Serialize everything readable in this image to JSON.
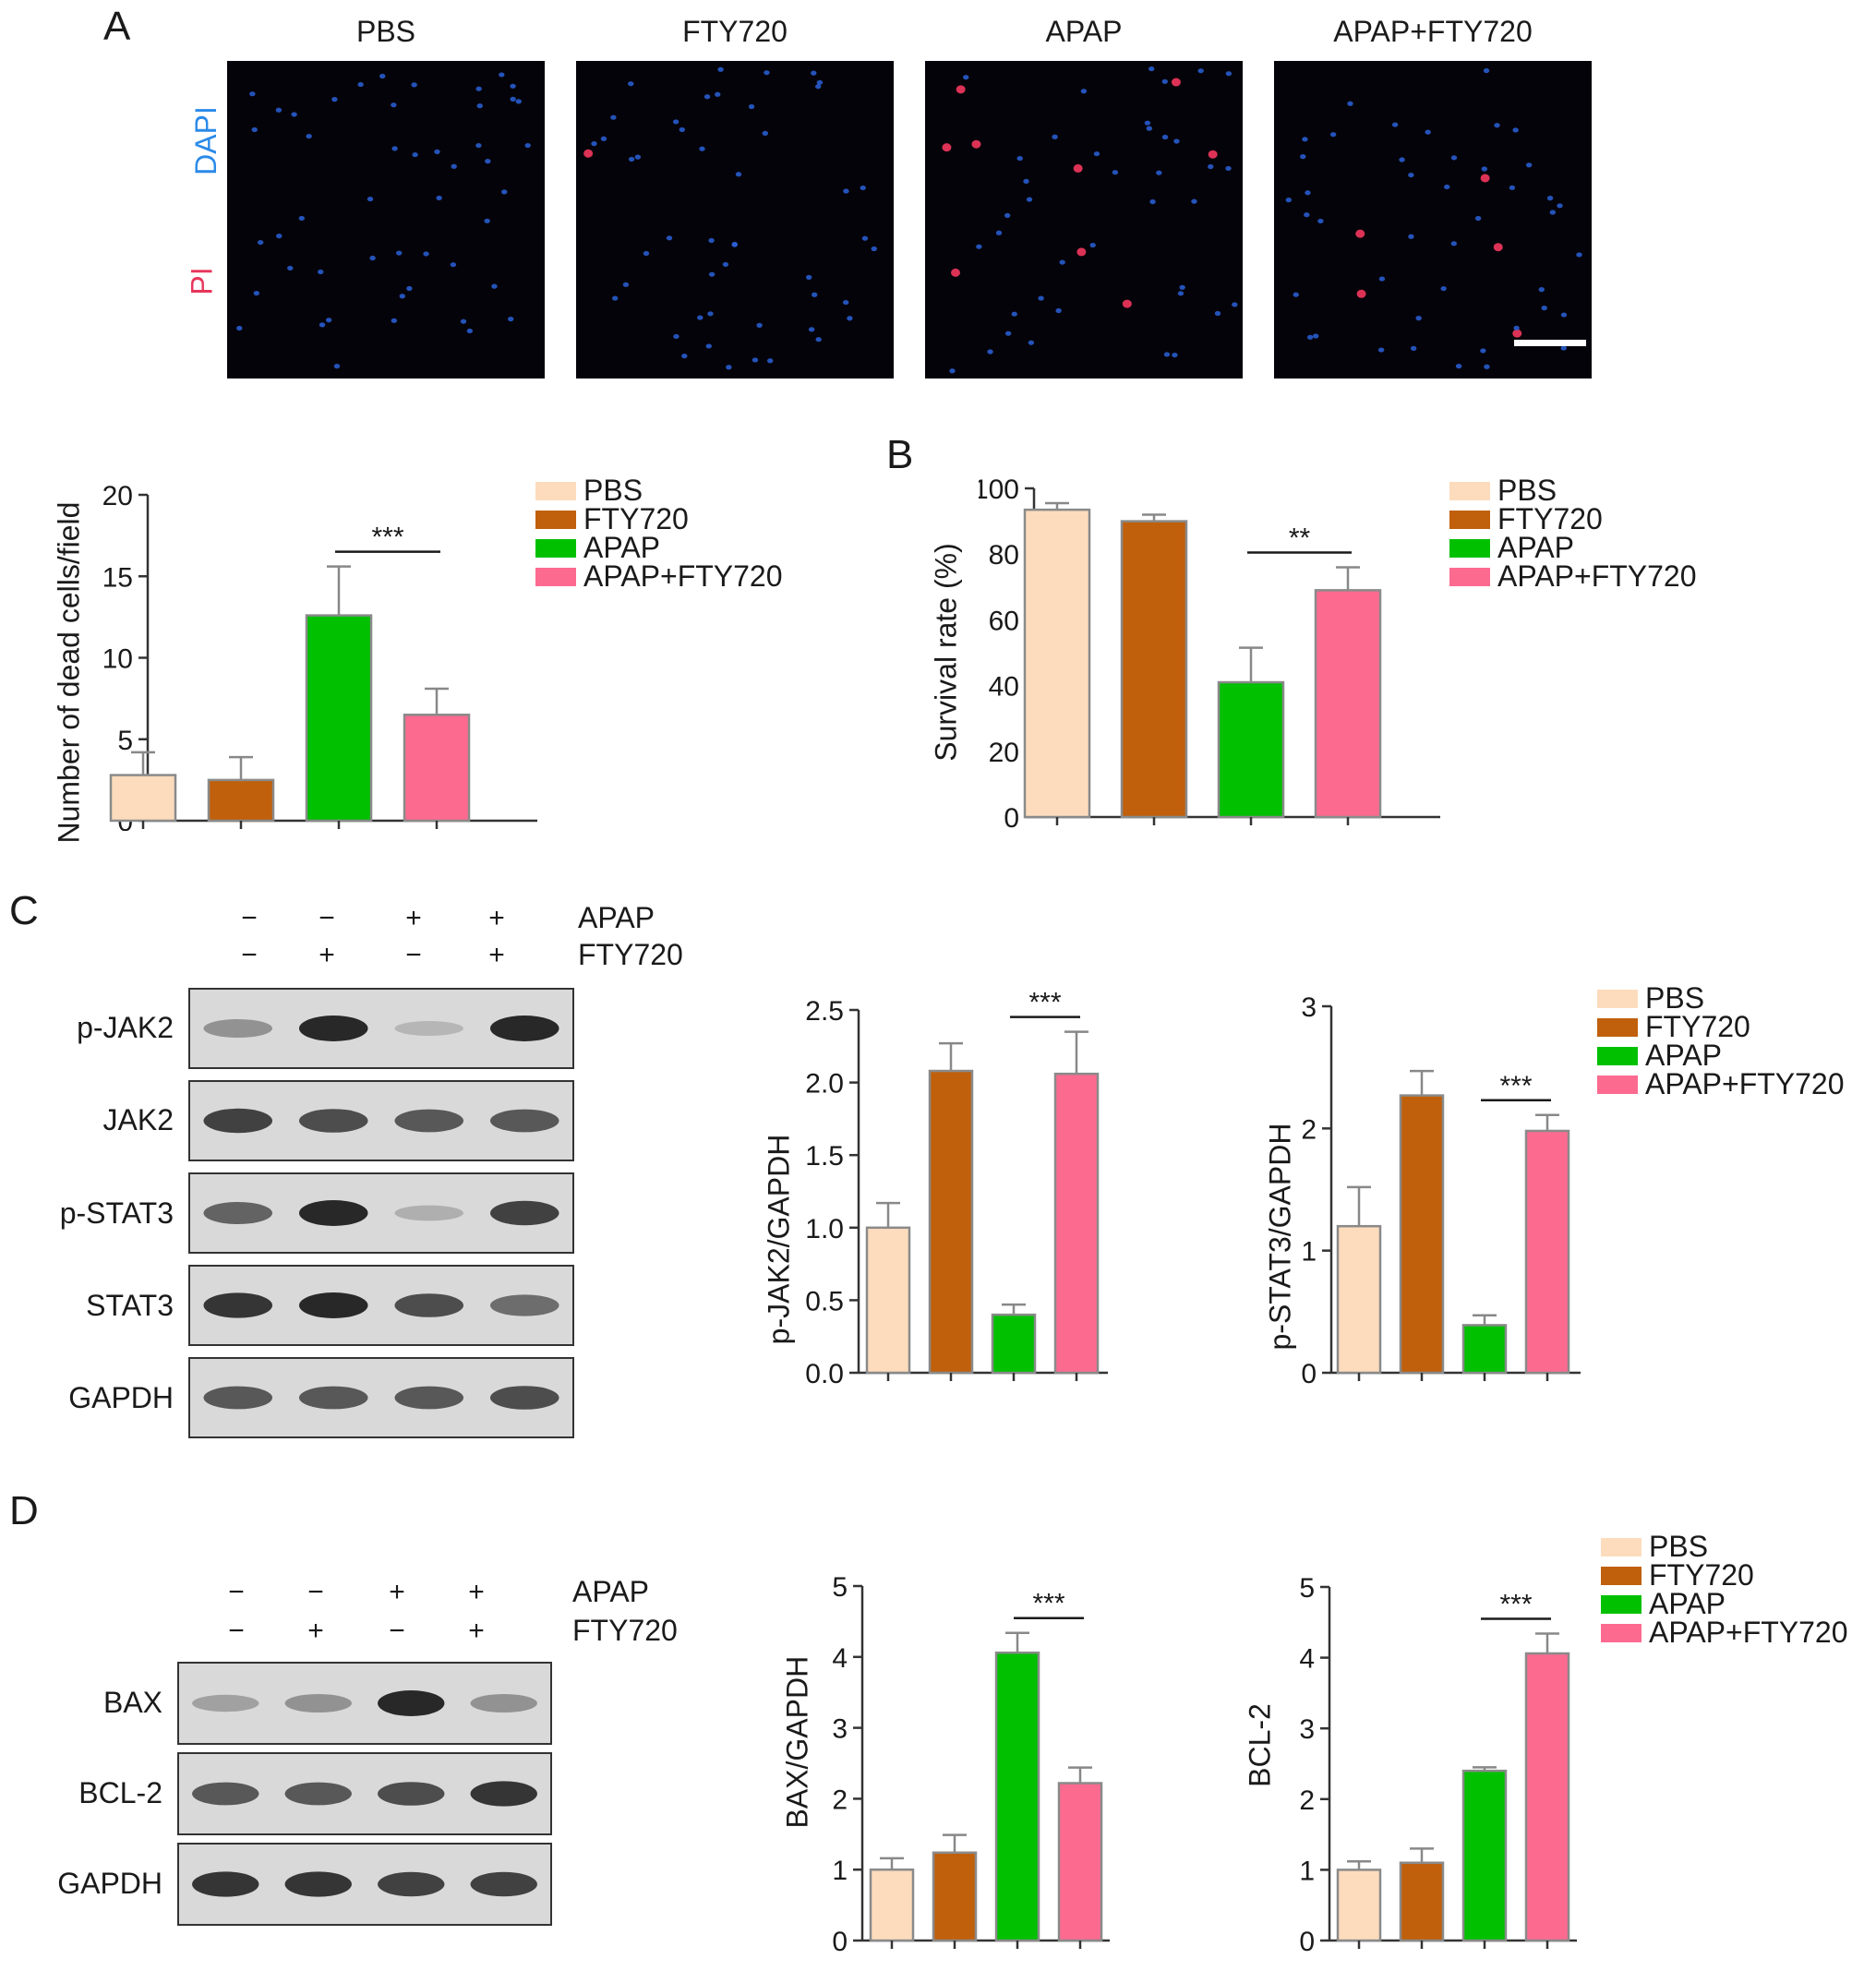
{
  "panels": {
    "A": "A",
    "B": "B",
    "C": "C",
    "D": "D"
  },
  "microscopy": {
    "titles": [
      "PBS",
      "FTY720",
      "APAP",
      "APAP+FTY720"
    ],
    "stain_labels": {
      "dapi": "DAPI",
      "pi": "PI"
    },
    "colors": {
      "dapi": "#2a62d8",
      "pi": "#e8355a"
    }
  },
  "colors": {
    "PBS": "#fcdcbc",
    "FTY720": "#c0600c",
    "APAP": "#00c000",
    "APAP+FTY720": "#fc6a90"
  },
  "legend": [
    "PBS",
    "FTY720",
    "APAP",
    "APAP+FTY720"
  ],
  "treatment": {
    "row1": "APAP",
    "row2": "FTY720",
    "C_row1": [
      "−",
      "−",
      "+",
      "+"
    ],
    "C_row2": [
      "−",
      "+",
      "−",
      "+"
    ],
    "D_row1": [
      "−",
      "−",
      "+",
      "+"
    ],
    "D_row2": [
      "−",
      "+",
      "−",
      "+"
    ]
  },
  "blots_C": [
    "p-JAK2",
    "JAK2",
    "p-STAT3",
    "STAT3",
    "GAPDH"
  ],
  "blots_D": [
    "BAX",
    "BCL-2",
    "GAPDH"
  ],
  "chart_data": [
    {
      "id": "dead",
      "type": "bar",
      "categories": [
        "PBS",
        "FTY720",
        "APAP",
        "APAP+FTY720"
      ],
      "values": [
        2.8,
        2.5,
        12.6,
        6.5
      ],
      "errors": [
        1.4,
        1.4,
        3.0,
        1.6
      ],
      "ylabel": "Number of dead cells/field",
      "ylim": [
        0,
        20
      ],
      "yticks": [
        "0",
        "5",
        "10",
        "15",
        "20"
      ],
      "sig": "***",
      "sig_between": [
        2,
        3
      ]
    },
    {
      "id": "survival",
      "type": "bar",
      "categories": [
        "PBS",
        "FTY720",
        "APAP",
        "APAP+FTY720"
      ],
      "values": [
        93.5,
        90,
        41,
        69
      ],
      "errors": [
        2.0,
        2.0,
        10.5,
        7.0
      ],
      "ylabel": "Survival rate (%)",
      "ylim": [
        0,
        100
      ],
      "yticks": [
        "0",
        "20",
        "40",
        "60",
        "80",
        "100"
      ],
      "sig": "**",
      "sig_between": [
        2,
        3
      ]
    },
    {
      "id": "pjak2",
      "type": "bar",
      "categories": [
        "PBS",
        "FTY720",
        "APAP",
        "APAP+FTY720"
      ],
      "values": [
        1.0,
        2.08,
        0.4,
        2.06
      ],
      "errors": [
        0.17,
        0.19,
        0.07,
        0.29
      ],
      "ylabel": "p-JAK2/GAPDH",
      "ylim": [
        0,
        2.5
      ],
      "yticks": [
        "0.0",
        "0.5",
        "1.0",
        "1.5",
        "2.0",
        "2.5"
      ],
      "sig": "***",
      "sig_between": [
        2,
        3
      ]
    },
    {
      "id": "pstat3",
      "type": "bar",
      "categories": [
        "PBS",
        "FTY720",
        "APAP",
        "APAP+FTY720"
      ],
      "values": [
        1.2,
        2.27,
        0.39,
        1.98
      ],
      "errors": [
        0.32,
        0.2,
        0.08,
        0.13
      ],
      "ylabel": "p-STAT3/GAPDH",
      "ylim": [
        0,
        3
      ],
      "yticks": [
        "0",
        "1",
        "2",
        "3"
      ],
      "sig": "***",
      "sig_between": [
        2,
        3
      ]
    },
    {
      "id": "bax",
      "type": "bar",
      "categories": [
        "PBS",
        "FTY720",
        "APAP",
        "APAP+FTY720"
      ],
      "values": [
        1.0,
        1.24,
        4.06,
        2.22
      ],
      "errors": [
        0.16,
        0.25,
        0.28,
        0.22
      ],
      "ylabel": "BAX/GAPDH",
      "ylim": [
        0,
        5
      ],
      "yticks": [
        "0",
        "1",
        "2",
        "3",
        "4",
        "5"
      ],
      "sig": "***",
      "sig_between": [
        2,
        3
      ]
    },
    {
      "id": "bcl2",
      "type": "bar",
      "categories": [
        "PBS",
        "FTY720",
        "APAP",
        "APAP+FTY720"
      ],
      "values": [
        1.0,
        1.1,
        2.4,
        4.06
      ],
      "errors": [
        0.12,
        0.2,
        0.05,
        0.28
      ],
      "ylabel": "BCL-2",
      "ylim": [
        0,
        5
      ],
      "yticks": [
        "0",
        "1",
        "2",
        "3",
        "4",
        "5"
      ],
      "sig": "***",
      "sig_between": [
        2,
        3
      ]
    }
  ]
}
